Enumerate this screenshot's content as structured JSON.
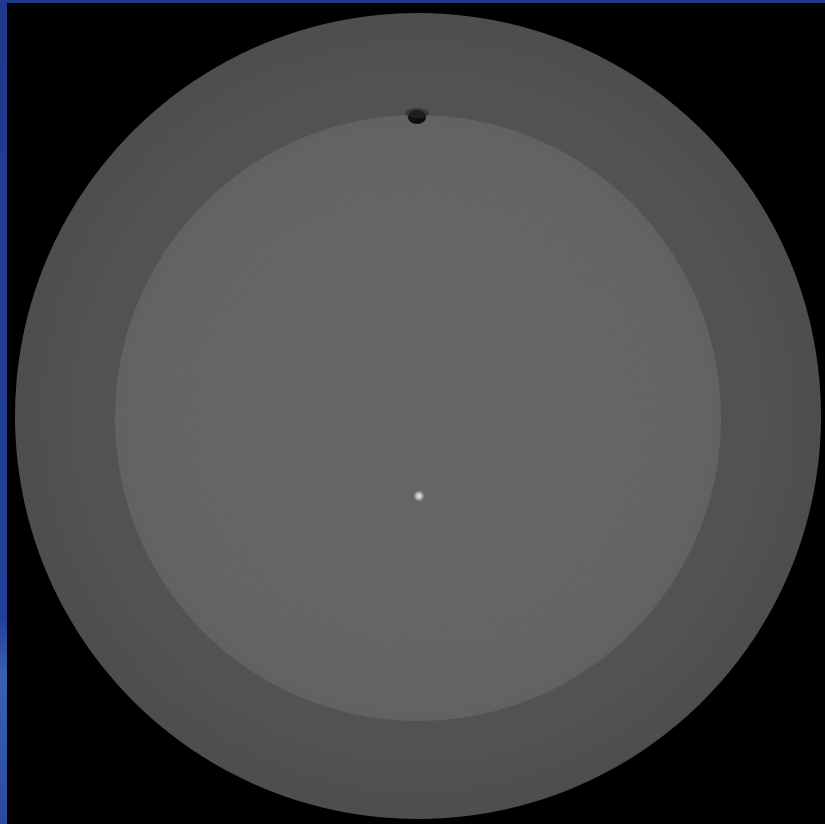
{
  "image": {
    "kind": "ct-phantom-cross-section",
    "colors": {
      "background": "#000000",
      "frame_border": "#1f3a8a",
      "outer_ring": "#4f4f4f",
      "inner_disc": "#636363",
      "air_bubble": "#0e0e0e",
      "bright_point": "#d8d8d8"
    }
  }
}
